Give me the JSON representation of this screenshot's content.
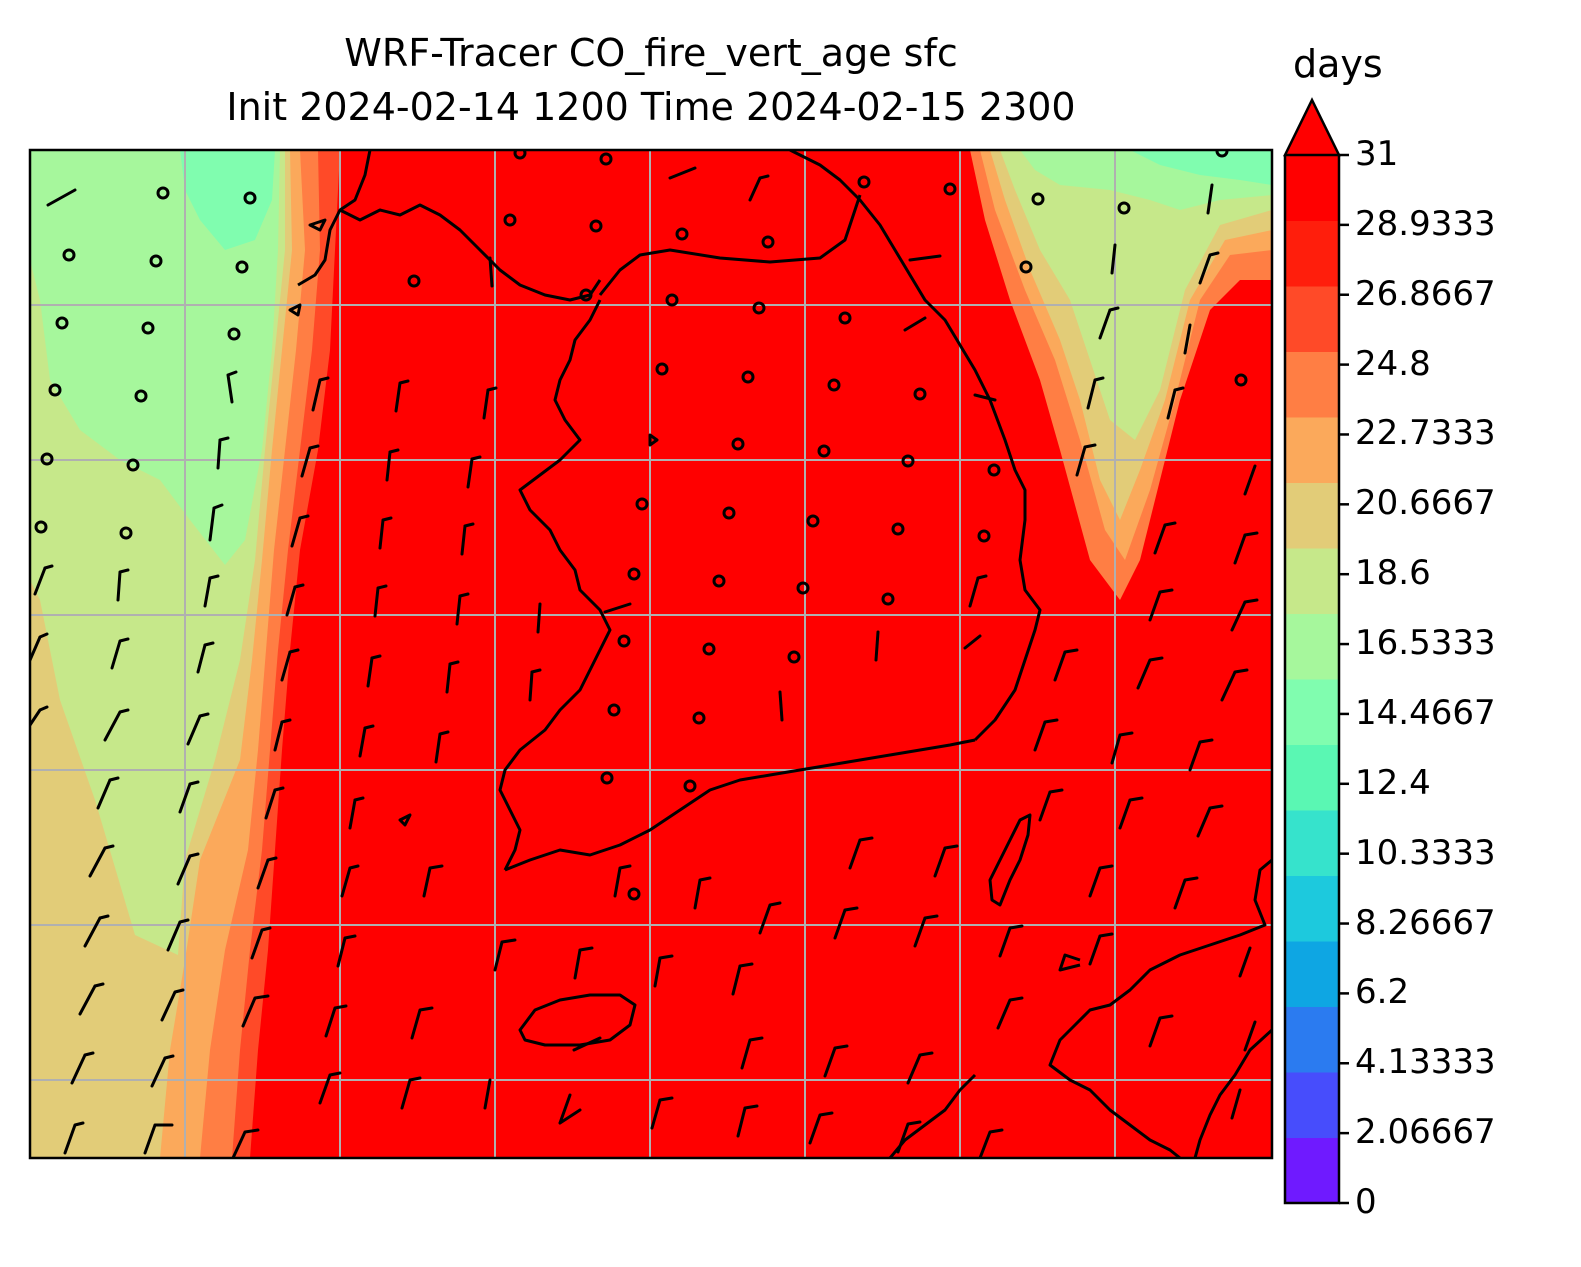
{
  "title": {
    "line1": "WRF-Tracer CO_fire_vert_age sfc",
    "line2": "Init 2024-02-14 1200 Time 2024-02-15 2300"
  },
  "colorbar": {
    "unit": "days",
    "min": 0,
    "max": 31,
    "extend": "max",
    "ticks": [
      "0",
      "2.06667",
      "4.13333",
      "6.2",
      "8.26667",
      "10.3333",
      "12.4",
      "14.4667",
      "16.5333",
      "18.6",
      "20.6667",
      "22.7333",
      "24.8",
      "26.8667",
      "28.9333",
      "31"
    ],
    "colors": [
      "#6f1aff",
      "#474dfc",
      "#2b7bf0",
      "#0ea6e3",
      "#1dc9dd",
      "#36e3cc",
      "#5af7b3",
      "#80fdaf",
      "#a6f79c",
      "#c6e88a",
      "#e2cc78",
      "#fba95b",
      "#ff7e44",
      "#ff4a28",
      "#ff1e0c",
      "#ff0000"
    ]
  },
  "map": {
    "field": "CO_fire_vert_age",
    "level": "sfc",
    "dominant_value_days": 31,
    "gridlines": true,
    "overlays": [
      "coastlines",
      "wind-barbs"
    ]
  }
}
